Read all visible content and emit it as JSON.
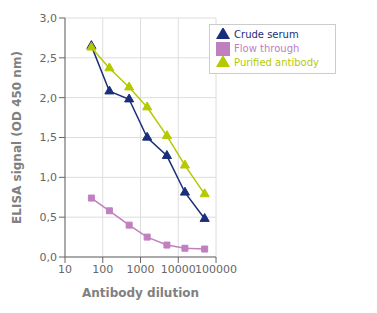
{
  "chart_data": {
    "type": "line",
    "x": [
      50,
      150,
      500,
      1500,
      5000,
      15000,
      50000
    ],
    "series": [
      {
        "name": "Crude serum",
        "color": "#1a2f7a",
        "marker": "triangle",
        "values": [
          2.65,
          2.08,
          1.98,
          1.5,
          1.27,
          0.81,
          0.48
        ]
      },
      {
        "name": "Purified antibody",
        "color": "#b5c900",
        "marker": "triangle",
        "values": [
          2.63,
          2.37,
          2.13,
          1.88,
          1.52,
          1.15,
          0.79
        ]
      },
      {
        "name": "Flow through",
        "color": "#c080c0",
        "marker": "square",
        "values": [
          0.74,
          0.58,
          0.4,
          0.25,
          0.15,
          0.11,
          0.1
        ]
      }
    ],
    "xlabel": "Antibody dilution",
    "ylabel": "ELISA signal (OD 450 nm)",
    "xlim": [
      10,
      100000
    ],
    "xticks": [
      10,
      100,
      1000,
      10000,
      100000
    ],
    "ylim": [
      0.0,
      3.0
    ],
    "yticks": [
      {
        "value": 0.0,
        "label": "0,0"
      },
      {
        "value": 0.5,
        "label": "0,5"
      },
      {
        "value": 1.0,
        "label": "1,0"
      },
      {
        "value": 1.5,
        "label": "1,5"
      },
      {
        "value": 2.0,
        "label": "2,0"
      },
      {
        "value": 2.5,
        "label": "2,5"
      },
      {
        "value": 3.0,
        "label": "3,0"
      }
    ],
    "log": "x",
    "grid": true,
    "legend": "upper right"
  }
}
